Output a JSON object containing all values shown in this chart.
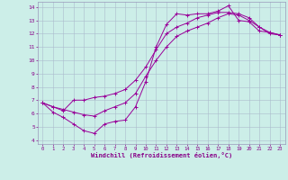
{
  "xlabel": "Windchill (Refroidissement éolien,°C)",
  "background_color": "#cceee8",
  "grid_color": "#aabbcc",
  "line_color": "#990099",
  "xlim": [
    -0.5,
    23.5
  ],
  "ylim": [
    3.7,
    14.4
  ],
  "xticks": [
    0,
    1,
    2,
    3,
    4,
    5,
    6,
    7,
    8,
    9,
    10,
    11,
    12,
    13,
    14,
    15,
    16,
    17,
    18,
    19,
    20,
    21,
    22,
    23
  ],
  "yticks": [
    4,
    5,
    6,
    7,
    8,
    9,
    10,
    11,
    12,
    13,
    14
  ],
  "line1_x": [
    0,
    1,
    2,
    3,
    4,
    5,
    6,
    7,
    8,
    9,
    10,
    11,
    12,
    13,
    14,
    15,
    16,
    17,
    18,
    19,
    20,
    21,
    22,
    23
  ],
  "line1_y": [
    6.8,
    6.1,
    5.7,
    5.2,
    4.7,
    4.5,
    5.2,
    5.4,
    5.5,
    6.5,
    8.4,
    11.0,
    12.7,
    13.5,
    13.4,
    13.5,
    13.5,
    13.7,
    14.1,
    13.0,
    12.9,
    12.2,
    12.1,
    11.9
  ],
  "line2_x": [
    0,
    1,
    2,
    3,
    4,
    5,
    6,
    7,
    8,
    9,
    10,
    11,
    12,
    13,
    14,
    15,
    16,
    17,
    18,
    19,
    20,
    21,
    22,
    23
  ],
  "line2_y": [
    6.8,
    6.5,
    6.2,
    7.0,
    7.0,
    7.2,
    7.3,
    7.5,
    7.8,
    8.5,
    9.5,
    10.8,
    12.0,
    12.5,
    12.8,
    13.2,
    13.4,
    13.6,
    13.6,
    13.5,
    13.2,
    12.5,
    12.0,
    11.9
  ],
  "line3_x": [
    0,
    1,
    2,
    3,
    4,
    5,
    6,
    7,
    8,
    9,
    10,
    11,
    12,
    13,
    14,
    15,
    16,
    17,
    18,
    19,
    20,
    21,
    22,
    23
  ],
  "line3_y": [
    6.8,
    6.5,
    6.3,
    6.1,
    5.9,
    5.8,
    6.2,
    6.5,
    6.8,
    7.5,
    8.8,
    10.0,
    11.0,
    11.8,
    12.2,
    12.5,
    12.8,
    13.2,
    13.5,
    13.4,
    13.0,
    12.5,
    12.1,
    11.9
  ]
}
